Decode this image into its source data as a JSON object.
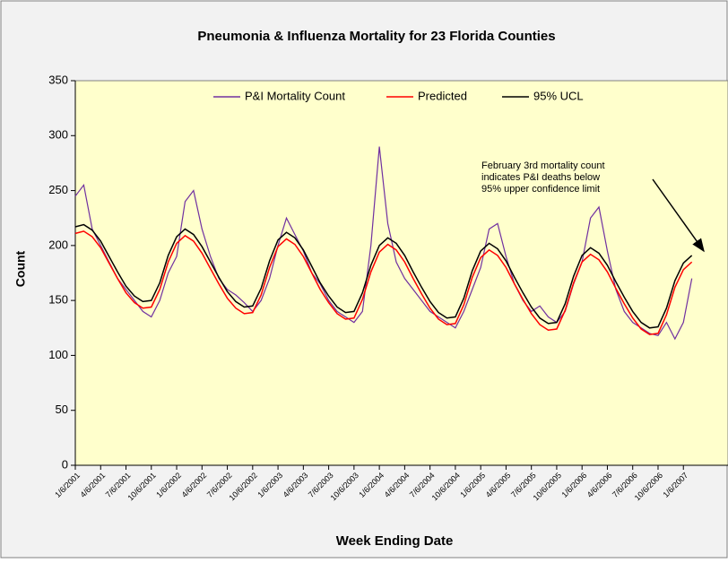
{
  "chart_data": {
    "type": "line",
    "title": "Pneumonia & Influenza Mortality for 23 Florida Counties",
    "y_label": "Count",
    "x_label": "Week Ending Date",
    "annotation": [
      "February 3rd mortality count",
      "indicates P&I deaths below",
      "95% upper confidence limit"
    ],
    "categories": [
      "1/6/2001",
      null,
      null,
      "4/6/2001",
      null,
      null,
      "7/6/2001",
      null,
      null,
      "10/6/2001",
      null,
      null,
      "1/6/2002",
      null,
      null,
      "4/6/2002",
      null,
      null,
      "7/6/2002",
      null,
      null,
      "10/6/2002",
      null,
      null,
      "1/6/2003",
      null,
      null,
      "4/6/2003",
      null,
      null,
      "7/6/2003",
      null,
      null,
      "10/6/2003",
      null,
      null,
      "1/6/2004",
      null,
      null,
      "4/6/2004",
      null,
      null,
      "7/6/2004",
      null,
      null,
      "10/6/2004",
      null,
      null,
      "1/6/2005",
      null,
      null,
      "4/6/2005",
      null,
      null,
      "7/6/2005",
      null,
      null,
      "10/6/2005",
      null,
      null,
      "1/6/2006",
      null,
      null,
      "4/6/2006",
      null,
      null,
      "7/6/2006",
      null,
      null,
      "10/6/2006",
      null,
      null,
      "1/6/2007",
      null
    ],
    "series": [
      {
        "name": "P&I Mortality Count",
        "color": "#7030a0",
        "values": [
          245,
          255,
          215,
          200,
          185,
          170,
          160,
          150,
          140,
          135,
          150,
          175,
          190,
          240,
          250,
          215,
          190,
          170,
          160,
          155,
          148,
          140,
          150,
          170,
          200,
          225,
          210,
          195,
          175,
          165,
          150,
          140,
          135,
          130,
          140,
          200,
          290,
          220,
          185,
          170,
          160,
          150,
          140,
          135,
          130,
          125,
          140,
          160,
          180,
          215,
          220,
          190,
          165,
          150,
          140,
          145,
          135,
          130,
          140,
          165,
          185,
          225,
          235,
          195,
          160,
          140,
          130,
          125,
          120,
          118,
          130,
          115,
          130,
          170
        ]
      },
      {
        "name": "Predicted",
        "color": "#ff0000",
        "values": [
          211,
          213,
          208,
          198,
          184,
          170,
          157,
          148,
          143,
          144,
          160,
          185,
          202,
          209,
          204,
          193,
          179,
          165,
          152,
          143,
          138,
          139,
          155,
          180,
          199,
          206,
          201,
          190,
          175,
          160,
          148,
          138,
          133,
          134,
          151,
          176,
          194,
          201,
          196,
          185,
          170,
          156,
          143,
          133,
          128,
          129,
          146,
          171,
          189,
          196,
          191,
          180,
          165,
          151,
          138,
          128,
          123,
          124,
          141,
          166,
          185,
          192,
          187,
          176,
          161,
          147,
          134,
          124,
          119,
          120,
          137,
          162,
          178,
          185
        ]
      },
      {
        "name": "95% UCL",
        "color": "#000000",
        "values": [
          217,
          219,
          214,
          204,
          190,
          176,
          163,
          154,
          149,
          150,
          166,
          191,
          208,
          215,
          210,
          199,
          185,
          171,
          158,
          149,
          144,
          145,
          161,
          186,
          205,
          212,
          207,
          196,
          181,
          166,
          154,
          144,
          139,
          140,
          157,
          182,
          200,
          207,
          202,
          191,
          176,
          162,
          149,
          139,
          134,
          135,
          152,
          177,
          195,
          202,
          197,
          186,
          171,
          157,
          144,
          134,
          129,
          130,
          147,
          172,
          191,
          198,
          193,
          182,
          167,
          153,
          140,
          130,
          125,
          126,
          143,
          168,
          184,
          191
        ]
      }
    ],
    "ylim": [
      0,
      350
    ],
    "yticks": [
      0,
      50,
      100,
      150,
      200,
      250,
      300,
      350
    ]
  }
}
